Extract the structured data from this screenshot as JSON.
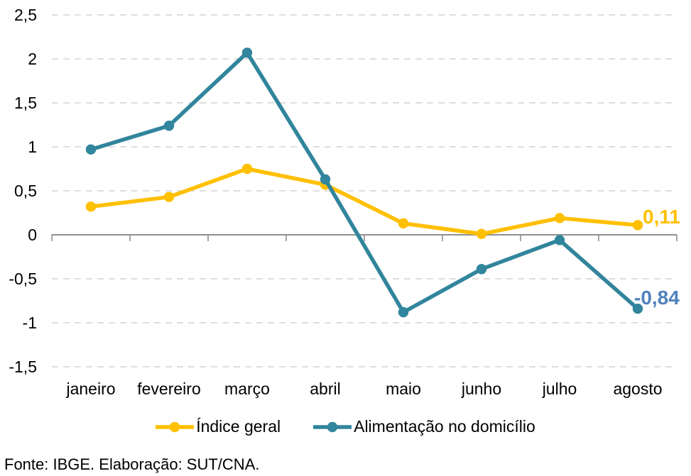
{
  "chart_data": {
    "type": "line",
    "title": "",
    "categories": [
      "janeiro",
      "fevereiro",
      "março",
      "abril",
      "maio",
      "junho",
      "julho",
      "agosto"
    ],
    "series": [
      {
        "name": "Índice geral",
        "color": "#FFC000",
        "values": [
          0.32,
          0.43,
          0.75,
          0.57,
          0.13,
          0.01,
          0.19,
          0.11
        ],
        "end_label": {
          "text": "0,11",
          "color": "#FFC000"
        }
      },
      {
        "name": "Alimentação no domicílio",
        "color": "#31859C",
        "values": [
          0.97,
          1.24,
          2.07,
          0.63,
          -0.88,
          -0.39,
          -0.06,
          -0.84
        ],
        "end_label": {
          "text": "-0,84",
          "color": "#4F81BD"
        }
      }
    ],
    "ylim": [
      -1.5,
      2.5
    ],
    "yticks": {
      "values": [
        2.5,
        2,
        1.5,
        1,
        0.5,
        0,
        -0.5,
        -1,
        -1.5
      ],
      "labels": [
        "2,5",
        "2",
        "1,5",
        "1",
        "0,5",
        "0",
        "-0,5",
        "-1",
        "-1,5"
      ]
    },
    "xlabel": "",
    "ylabel": "",
    "grid": "horizontal-dashed",
    "legend_position": "bottom",
    "decimal_separator": ","
  },
  "footer": {
    "source_note": "Fonte: IBGE. Elaboração: SUT/CNA."
  },
  "style_colors": {
    "gridline": "#D4D4D4",
    "axis": "#8F8F8F",
    "text": "#000000",
    "background": "#FFFFFF"
  }
}
